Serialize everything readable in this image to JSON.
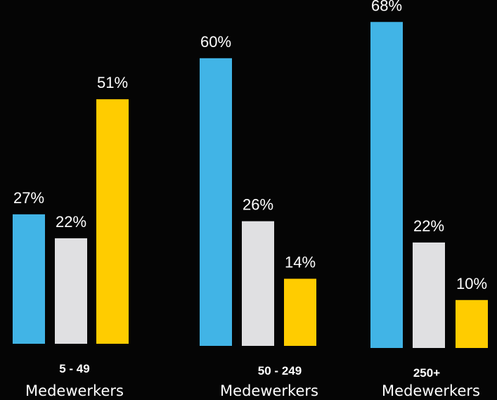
{
  "chart_data": {
    "type": "bar",
    "categories": [
      {
        "label": "5 - 49",
        "sublabel": "Medewerkers"
      },
      {
        "label": "50 - 249",
        "sublabel": "Medewerkers"
      },
      {
        "label": "250+",
        "sublabel": "Medewerkers"
      }
    ],
    "series": [
      {
        "values": [
          27,
          60,
          68
        ],
        "labels": [
          "27%",
          "60%",
          "68%"
        ],
        "color": "#41b4e6"
      },
      {
        "values": [
          22,
          26,
          22
        ],
        "labels": [
          "22%",
          "26%",
          "22%"
        ],
        "color": "#e0e0e2"
      },
      {
        "values": [
          51,
          14,
          10
        ],
        "labels": [
          "51%",
          "14%",
          "10%"
        ],
        "color": "#ffcc00"
      }
    ],
    "ylim": [
      0,
      70
    ],
    "grid": false,
    "legend": "none",
    "background": "#050505"
  }
}
